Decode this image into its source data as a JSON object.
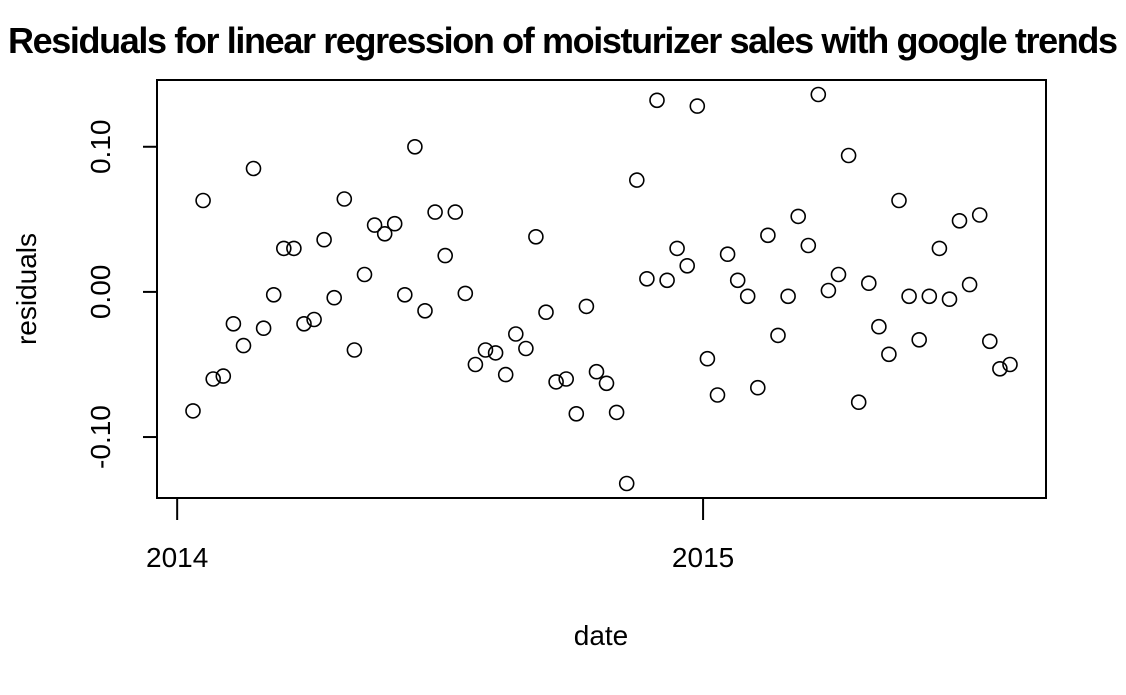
{
  "chart_data": {
    "type": "scatter",
    "title": "Residuals for linear regression of moisturizer sales with google trends",
    "xlabel": "date",
    "ylabel": "residuals",
    "x_ticks": [
      {
        "label": "2014",
        "value": "2014-01-01"
      },
      {
        "label": "2015",
        "value": "2015-01-01"
      }
    ],
    "y_ticks": [
      {
        "label": "-0.10",
        "value": -0.1
      },
      {
        "label": "0.00",
        "value": 0.0
      },
      {
        "label": "0.10",
        "value": 0.1
      }
    ],
    "xlim": [
      "2013-12-18",
      "2015-08-27"
    ],
    "ylim": [
      -0.142,
      0.146
    ],
    "grid": false,
    "legend": "none",
    "marker": "open-circle",
    "points": [
      {
        "x": "2014-01-12",
        "y": -0.082
      },
      {
        "x": "2014-01-19",
        "y": 0.063
      },
      {
        "x": "2014-01-26",
        "y": -0.06
      },
      {
        "x": "2014-02-02",
        "y": -0.058
      },
      {
        "x": "2014-02-09",
        "y": -0.022
      },
      {
        "x": "2014-02-16",
        "y": -0.037
      },
      {
        "x": "2014-02-23",
        "y": 0.085
      },
      {
        "x": "2014-03-02",
        "y": -0.025
      },
      {
        "x": "2014-03-09",
        "y": -0.002
      },
      {
        "x": "2014-03-16",
        "y": 0.03
      },
      {
        "x": "2014-03-23",
        "y": 0.03
      },
      {
        "x": "2014-03-30",
        "y": -0.022
      },
      {
        "x": "2014-04-06",
        "y": -0.019
      },
      {
        "x": "2014-04-13",
        "y": 0.036
      },
      {
        "x": "2014-04-20",
        "y": -0.004
      },
      {
        "x": "2014-04-27",
        "y": 0.064
      },
      {
        "x": "2014-05-04",
        "y": -0.04
      },
      {
        "x": "2014-05-11",
        "y": 0.012
      },
      {
        "x": "2014-05-18",
        "y": 0.046
      },
      {
        "x": "2014-05-25",
        "y": 0.04
      },
      {
        "x": "2014-06-01",
        "y": 0.047
      },
      {
        "x": "2014-06-08",
        "y": -0.002
      },
      {
        "x": "2014-06-15",
        "y": 0.1
      },
      {
        "x": "2014-06-22",
        "y": -0.013
      },
      {
        "x": "2014-06-29",
        "y": 0.055
      },
      {
        "x": "2014-07-06",
        "y": 0.025
      },
      {
        "x": "2014-07-13",
        "y": 0.055
      },
      {
        "x": "2014-07-20",
        "y": -0.001
      },
      {
        "x": "2014-07-27",
        "y": -0.05
      },
      {
        "x": "2014-08-03",
        "y": -0.04
      },
      {
        "x": "2014-08-10",
        "y": -0.042
      },
      {
        "x": "2014-08-17",
        "y": -0.057
      },
      {
        "x": "2014-08-24",
        "y": -0.029
      },
      {
        "x": "2014-08-31",
        "y": -0.039
      },
      {
        "x": "2014-09-07",
        "y": 0.038
      },
      {
        "x": "2014-09-14",
        "y": -0.014
      },
      {
        "x": "2014-09-21",
        "y": -0.062
      },
      {
        "x": "2014-09-28",
        "y": -0.06
      },
      {
        "x": "2014-10-05",
        "y": -0.084
      },
      {
        "x": "2014-10-12",
        "y": -0.01
      },
      {
        "x": "2014-10-19",
        "y": -0.055
      },
      {
        "x": "2014-10-26",
        "y": -0.063
      },
      {
        "x": "2014-11-02",
        "y": -0.083
      },
      {
        "x": "2014-11-09",
        "y": -0.132
      },
      {
        "x": "2014-11-16",
        "y": 0.077
      },
      {
        "x": "2014-11-23",
        "y": 0.009
      },
      {
        "x": "2014-11-30",
        "y": 0.132
      },
      {
        "x": "2014-12-07",
        "y": 0.008
      },
      {
        "x": "2014-12-14",
        "y": 0.03
      },
      {
        "x": "2014-12-21",
        "y": 0.018
      },
      {
        "x": "2014-12-28",
        "y": 0.128
      },
      {
        "x": "2015-01-04",
        "y": -0.046
      },
      {
        "x": "2015-01-11",
        "y": -0.071
      },
      {
        "x": "2015-01-18",
        "y": 0.026
      },
      {
        "x": "2015-01-25",
        "y": 0.008
      },
      {
        "x": "2015-02-01",
        "y": -0.003
      },
      {
        "x": "2015-02-08",
        "y": -0.066
      },
      {
        "x": "2015-02-15",
        "y": 0.039
      },
      {
        "x": "2015-02-22",
        "y": -0.03
      },
      {
        "x": "2015-03-01",
        "y": -0.003
      },
      {
        "x": "2015-03-08",
        "y": 0.052
      },
      {
        "x": "2015-03-15",
        "y": 0.032
      },
      {
        "x": "2015-03-22",
        "y": 0.136
      },
      {
        "x": "2015-03-29",
        "y": 0.001
      },
      {
        "x": "2015-04-05",
        "y": 0.012
      },
      {
        "x": "2015-04-12",
        "y": 0.094
      },
      {
        "x": "2015-04-19",
        "y": -0.076
      },
      {
        "x": "2015-04-26",
        "y": 0.006
      },
      {
        "x": "2015-05-03",
        "y": -0.024
      },
      {
        "x": "2015-05-10",
        "y": -0.043
      },
      {
        "x": "2015-05-17",
        "y": 0.063
      },
      {
        "x": "2015-05-24",
        "y": -0.003
      },
      {
        "x": "2015-05-31",
        "y": -0.033
      },
      {
        "x": "2015-06-07",
        "y": -0.003
      },
      {
        "x": "2015-06-14",
        "y": 0.03
      },
      {
        "x": "2015-06-21",
        "y": -0.005
      },
      {
        "x": "2015-06-28",
        "y": 0.049
      },
      {
        "x": "2015-07-05",
        "y": 0.005
      },
      {
        "x": "2015-07-12",
        "y": 0.053
      },
      {
        "x": "2015-07-19",
        "y": -0.034
      },
      {
        "x": "2015-07-26",
        "y": -0.053
      },
      {
        "x": "2015-08-02",
        "y": -0.05
      }
    ]
  }
}
